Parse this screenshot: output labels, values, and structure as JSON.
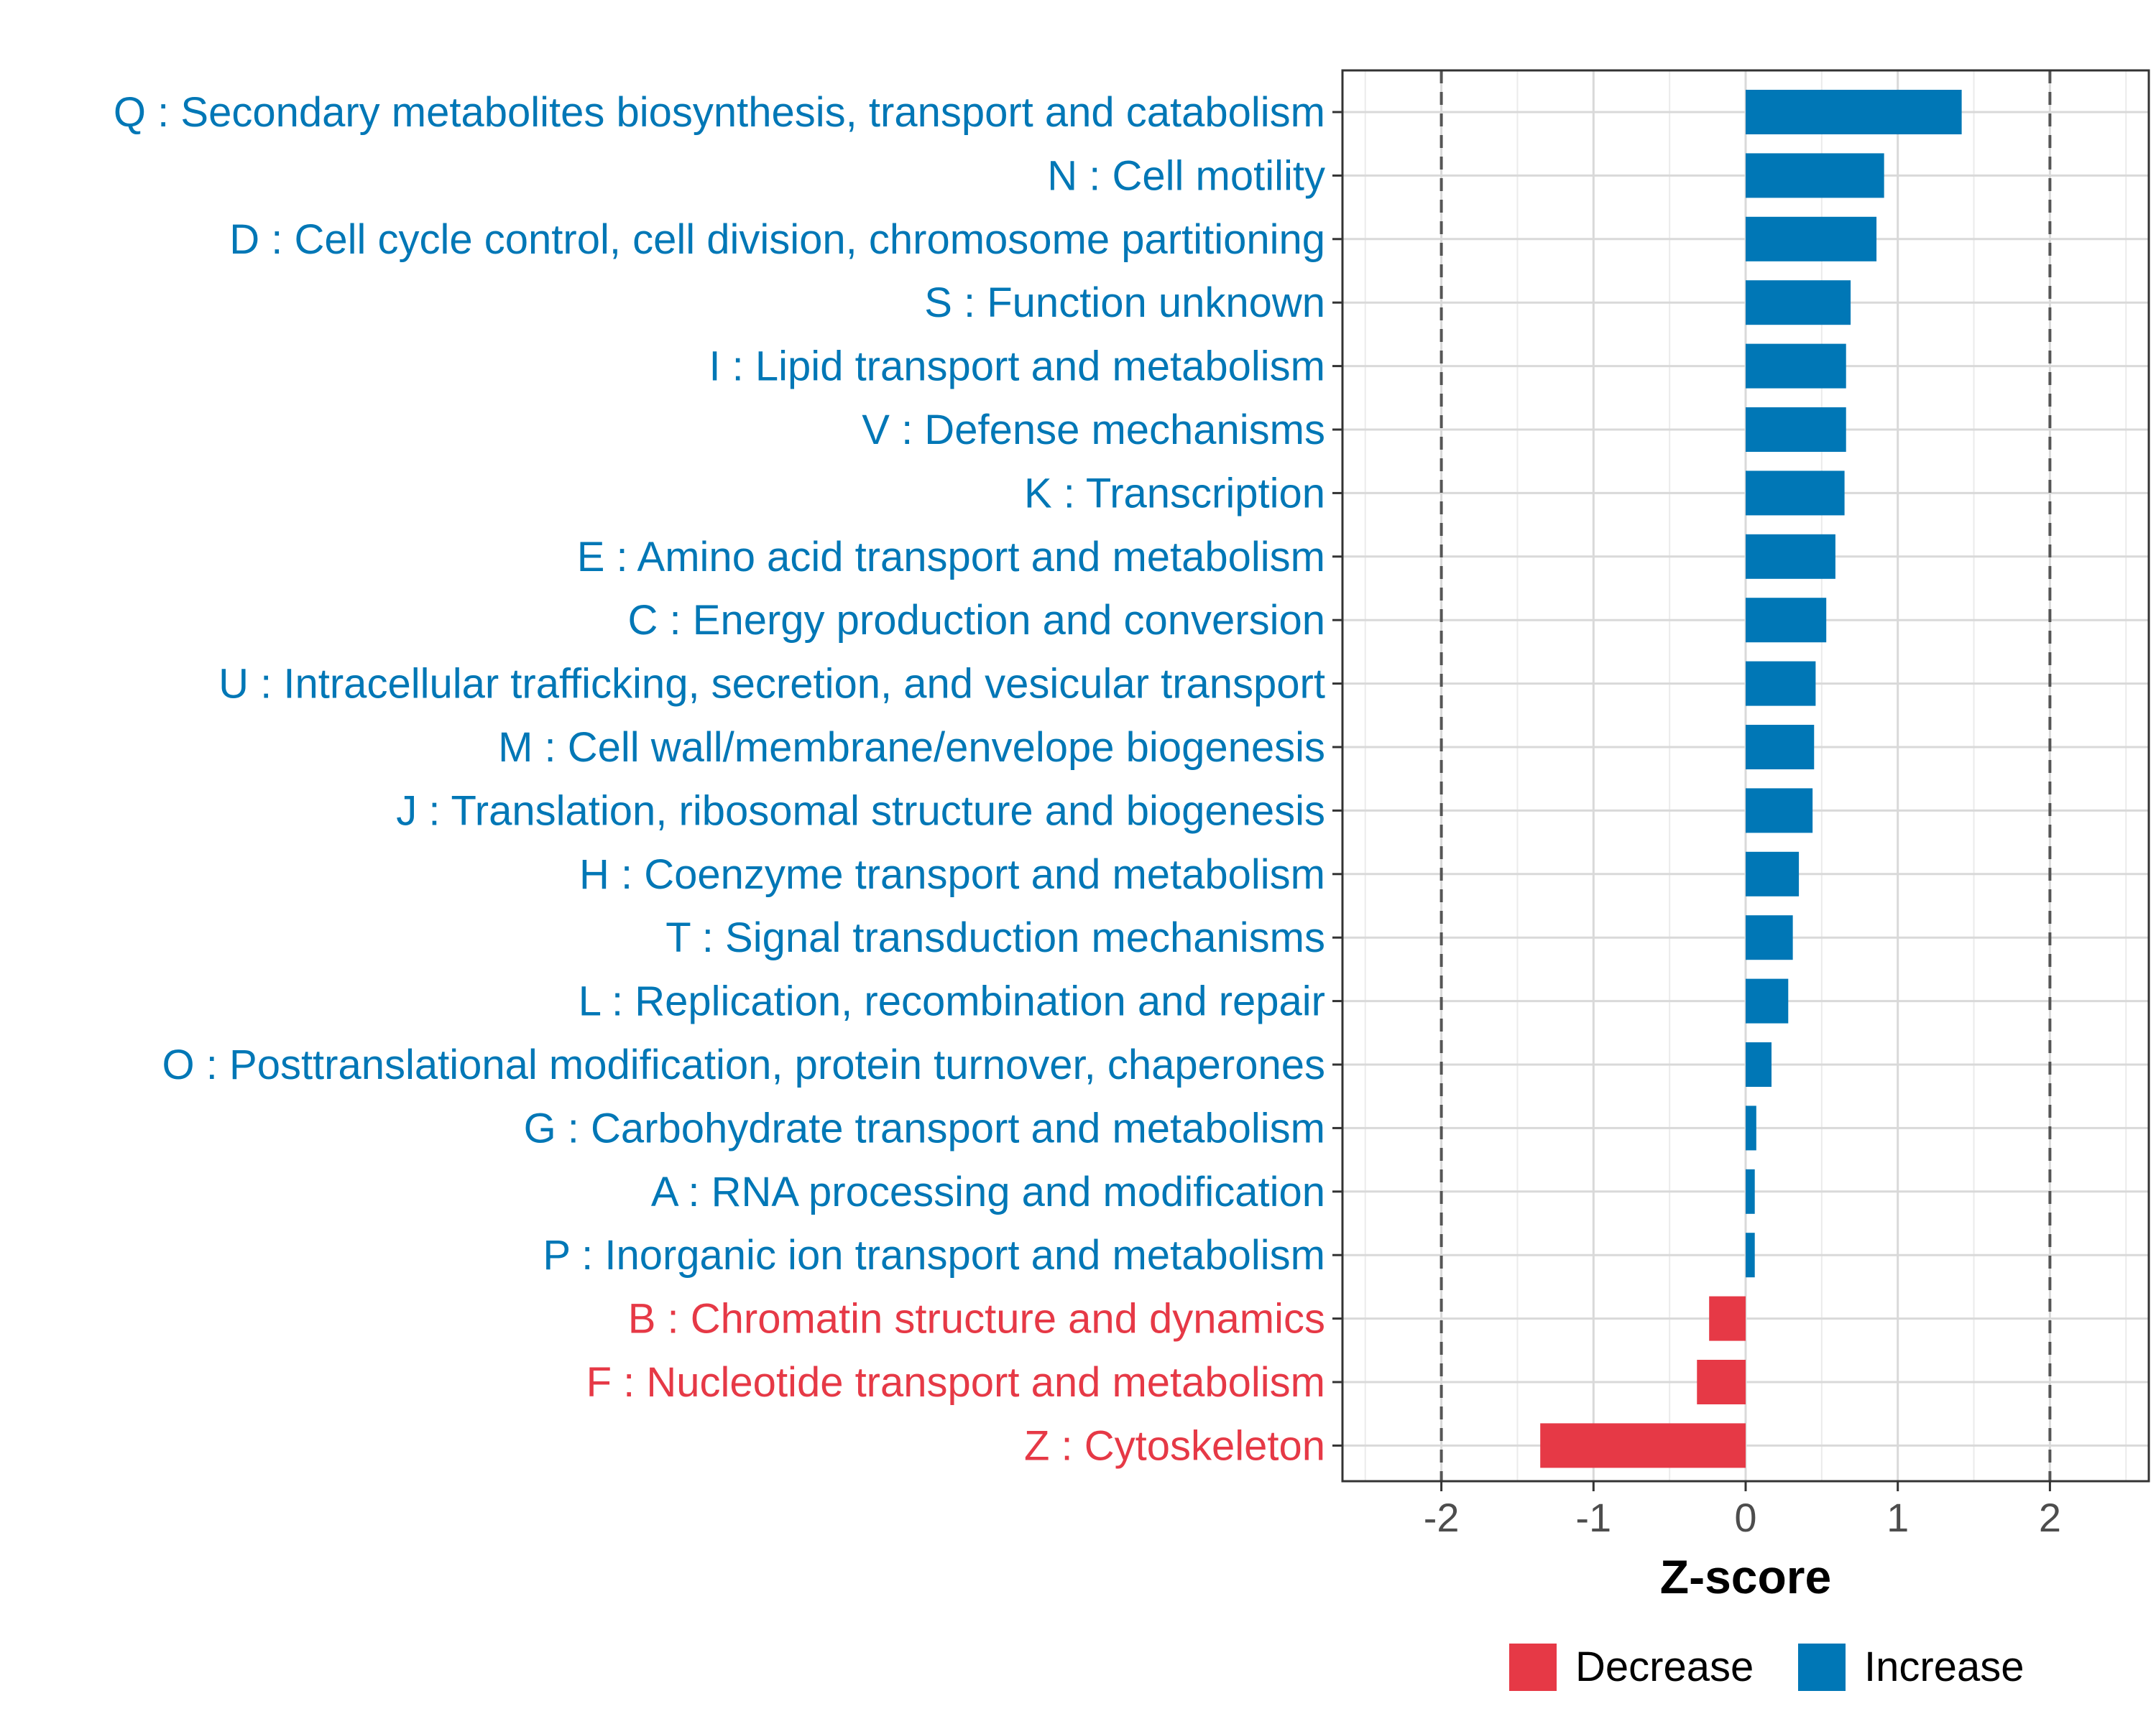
{
  "chart_data": {
    "type": "bar",
    "orientation": "horizontal",
    "xlabel": "Z-score",
    "xlim": [
      -2.65,
      2.65
    ],
    "xticks": [
      -2,
      -1,
      0,
      1,
      2
    ],
    "xtick_labels": [
      "-2",
      "-1",
      "0",
      "1",
      "2"
    ],
    "reference_lines": [
      -2,
      2
    ],
    "grid": true,
    "colors": {
      "Decrease": "#e63946",
      "Increase": "#0077b6"
    },
    "categories": [
      {
        "label": "Q : Secondary metabolites biosynthesis, transport and catabolism",
        "value": 1.42,
        "direction": "Increase"
      },
      {
        "label": "N : Cell motility",
        "value": 0.91,
        "direction": "Increase"
      },
      {
        "label": "D : Cell cycle control, cell division, chromosome partitioning",
        "value": 0.86,
        "direction": "Increase"
      },
      {
        "label": "S : Function unknown",
        "value": 0.69,
        "direction": "Increase"
      },
      {
        "label": "I : Lipid transport and metabolism",
        "value": 0.66,
        "direction": "Increase"
      },
      {
        "label": "V : Defense mechanisms",
        "value": 0.66,
        "direction": "Increase"
      },
      {
        "label": "K : Transcription",
        "value": 0.65,
        "direction": "Increase"
      },
      {
        "label": "E : Amino acid transport and metabolism",
        "value": 0.59,
        "direction": "Increase"
      },
      {
        "label": "C : Energy production and conversion",
        "value": 0.53,
        "direction": "Increase"
      },
      {
        "label": "U : Intracellular trafficking, secretion, and vesicular transport",
        "value": 0.46,
        "direction": "Increase"
      },
      {
        "label": "M : Cell wall/membrane/envelope biogenesis",
        "value": 0.45,
        "direction": "Increase"
      },
      {
        "label": "J : Translation, ribosomal structure and biogenesis",
        "value": 0.44,
        "direction": "Increase"
      },
      {
        "label": "H : Coenzyme transport and metabolism",
        "value": 0.35,
        "direction": "Increase"
      },
      {
        "label": "T : Signal transduction mechanisms",
        "value": 0.31,
        "direction": "Increase"
      },
      {
        "label": "L : Replication, recombination and repair",
        "value": 0.28,
        "direction": "Increase"
      },
      {
        "label": "O : Posttranslational modification, protein turnover, chaperones",
        "value": 0.17,
        "direction": "Increase"
      },
      {
        "label": "G : Carbohydrate transport and metabolism",
        "value": 0.07,
        "direction": "Increase"
      },
      {
        "label": "A : RNA processing and modification",
        "value": 0.06,
        "direction": "Increase"
      },
      {
        "label": "P : Inorganic ion transport and metabolism",
        "value": 0.06,
        "direction": "Increase"
      },
      {
        "label": "B : Chromatin structure and dynamics",
        "value": -0.24,
        "direction": "Decrease"
      },
      {
        "label": "F : Nucleotide transport and metabolism",
        "value": -0.32,
        "direction": "Decrease"
      },
      {
        "label": "Z : Cytoskeleton",
        "value": -1.35,
        "direction": "Decrease"
      }
    ],
    "legend": {
      "position": "bottom",
      "entries": [
        "Decrease",
        "Increase"
      ]
    }
  }
}
